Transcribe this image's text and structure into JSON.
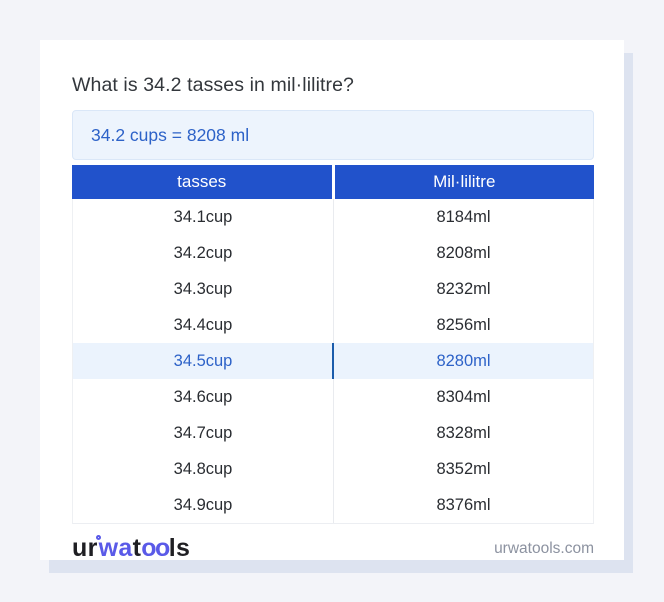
{
  "title": "What is 34.2 tasses in mil·lilitre?",
  "answer": {
    "text": "34.2 cups = 8208 ml"
  },
  "table": {
    "columns": [
      "tasses",
      "Mil·lilitre"
    ],
    "rows": [
      {
        "cup": "34.1cup",
        "ml": "8184ml",
        "highlighted": false
      },
      {
        "cup": "34.2cup",
        "ml": "8208ml",
        "highlighted": false
      },
      {
        "cup": "34.3cup",
        "ml": "8232ml",
        "highlighted": false
      },
      {
        "cup": "34.4cup",
        "ml": "8256ml",
        "highlighted": false
      },
      {
        "cup": "34.5cup",
        "ml": "8280ml",
        "highlighted": true
      },
      {
        "cup": "34.6cup",
        "ml": "8304ml",
        "highlighted": false
      },
      {
        "cup": "34.7cup",
        "ml": "8328ml",
        "highlighted": false
      },
      {
        "cup": "34.8cup",
        "ml": "8352ml",
        "highlighted": false
      },
      {
        "cup": "34.9cup",
        "ml": "8376ml",
        "highlighted": false
      }
    ]
  },
  "footer": {
    "logo": {
      "part1": "ur",
      "part2": "wa",
      "part3": "t",
      "part4": "oo",
      "part5": "ls"
    },
    "domain": "urwatools.com"
  },
  "colors": {
    "page_background": "#f3f4f9",
    "card_background": "#ffffff",
    "card_shadow": "#dde3f0",
    "header_blue": "#2152cb",
    "answer_background": "#edf4fd",
    "answer_border": "#dae7f8",
    "link_blue": "#2d62c8",
    "highlight_row_background": "#ebf3fd",
    "highlight_divider": "#1b5cab",
    "row_text": "#2a2d32",
    "logo_accent": "#5a5ae8",
    "domain_text": "#8c92a0"
  }
}
